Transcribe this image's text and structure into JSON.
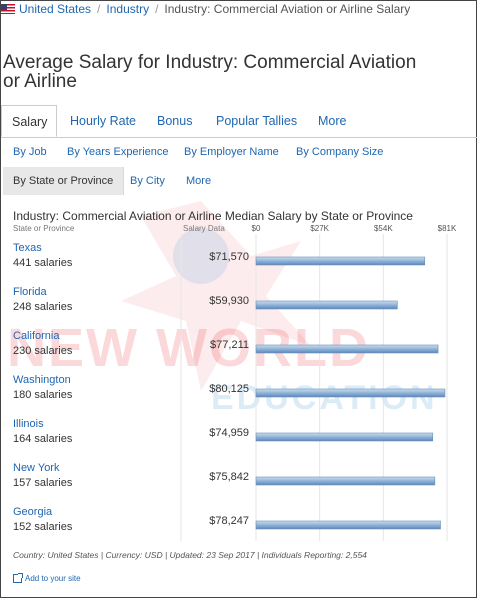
{
  "breadcrumb": {
    "items": [
      "United States",
      "Industry",
      "Industry: Commercial Aviation or Airline Salary"
    ]
  },
  "page_title": "Average Salary for Industry: Commercial Aviation or Airline",
  "tabs": [
    {
      "label": "Salary",
      "active": true
    },
    {
      "label": "Hourly Rate",
      "active": false
    },
    {
      "label": "Bonus",
      "active": false
    },
    {
      "label": "Popular Tallies",
      "active": false
    },
    {
      "label": "More",
      "active": false
    }
  ],
  "subnav_row1": [
    "By Job",
    "By Years Experience",
    "By Employer Name",
    "By Company Size"
  ],
  "subnav_row2": [
    {
      "label": "By State or Province",
      "active": true
    },
    {
      "label": "By City",
      "active": false
    },
    {
      "label": "More",
      "active": false
    }
  ],
  "chart_data": {
    "type": "bar",
    "orientation": "horizontal",
    "title": "Industry: Commercial Aviation or Airline Median Salary by State or Province",
    "column_headers": {
      "category": "State or Province",
      "value": "Salary Data"
    },
    "categories": [
      "Texas",
      "Florida",
      "California",
      "Washington",
      "Illinois",
      "New York",
      "Georgia"
    ],
    "counts": [
      "441 salaries",
      "248 salaries",
      "230 salaries",
      "180 salaries",
      "164 salaries",
      "157 salaries",
      "152 salaries"
    ],
    "values": [
      71570,
      59930,
      77211,
      80125,
      74959,
      75842,
      78247
    ],
    "value_labels": [
      "$71,570",
      "$59,930",
      "$77,211",
      "$80,125",
      "$74,959",
      "$75,842",
      "$78,247"
    ],
    "xlim": [
      0,
      81000
    ],
    "ticks": [
      0,
      27000,
      54000,
      81000
    ],
    "tick_labels": [
      "$0",
      "$27K",
      "$54K",
      "$81K"
    ],
    "grid": true,
    "bar_color": "#8fb3d9"
  },
  "footnote": "Country: United States | Currency: USD | Updated: 23 Sep 2017 | Individuals Reporting: 2,554",
  "add_to_site": "Add to your site",
  "watermark": {
    "line1": "NEW WORLD",
    "line2": "EDUCATION"
  },
  "colors": {
    "link": "#2067b0",
    "bar": "#8fb3d9"
  }
}
